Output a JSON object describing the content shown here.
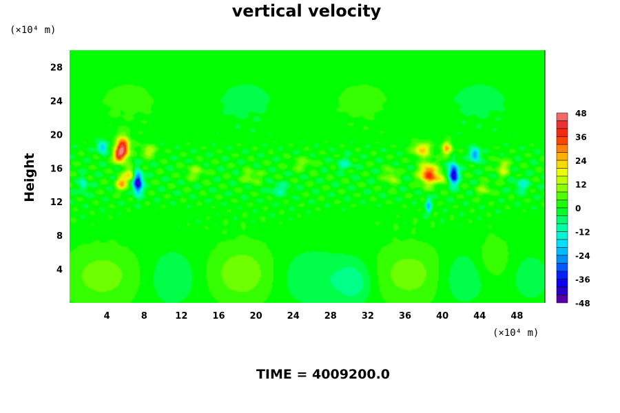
{
  "chart_data": {
    "type": "heatmap",
    "title": "vertical velocity",
    "ylabel": "Height",
    "x_unit": "(×10⁴ m)",
    "y_unit": "(×10⁴ m)",
    "footer": "TIME = 4009200.0",
    "xlim": [
      0,
      51
    ],
    "ylim": [
      0,
      30
    ],
    "x_ticks": [
      "4",
      "8",
      "12",
      "16",
      "20",
      "24",
      "28",
      "32",
      "36",
      "40",
      "44",
      "48"
    ],
    "y_ticks": [
      "4",
      "8",
      "12",
      "16",
      "20",
      "24",
      "28"
    ],
    "colorbar": {
      "min": -48,
      "max": 48,
      "step": 4,
      "labels": [
        "48",
        "36",
        "24",
        "12",
        "0",
        "-12",
        "-24",
        "-36",
        "-48"
      ]
    },
    "background_value": 0,
    "features": [
      {
        "x": 3.5,
        "y": 3.2,
        "rx": 4.0,
        "ry": 3.5,
        "value": 8
      },
      {
        "x": 18.5,
        "y": 3.5,
        "rx": 3.5,
        "ry": 3.5,
        "value": 9
      },
      {
        "x": 36.5,
        "y": 3.4,
        "rx": 4.0,
        "ry": 3.5,
        "value": 8
      },
      {
        "x": 45.5,
        "y": 5.5,
        "rx": 1.6,
        "ry": 2.5,
        "value": 6
      },
      {
        "x": 11.0,
        "y": 3.0,
        "rx": 2.5,
        "ry": 3.0,
        "value": -6
      },
      {
        "x": 26.0,
        "y": 3.0,
        "rx": 3.5,
        "ry": 3.0,
        "value": -6
      },
      {
        "x": 30.5,
        "y": 2.5,
        "rx": 2.0,
        "ry": 2.5,
        "value": -9
      },
      {
        "x": 42.0,
        "y": 3.0,
        "rx": 2.5,
        "ry": 3.0,
        "value": -6
      },
      {
        "x": 49.5,
        "y": 3.0,
        "rx": 1.8,
        "ry": 2.5,
        "value": -5
      },
      {
        "x": 5.7,
        "y": 18.5,
        "rx": 0.7,
        "ry": 1.2,
        "value": 44
      },
      {
        "x": 5.3,
        "y": 17.4,
        "rx": 0.6,
        "ry": 0.8,
        "value": 30
      },
      {
        "x": 6.5,
        "y": 15.2,
        "rx": 0.6,
        "ry": 0.8,
        "value": 22
      },
      {
        "x": 5.6,
        "y": 14.2,
        "rx": 0.6,
        "ry": 0.8,
        "value": 26
      },
      {
        "x": 3.5,
        "y": 18.5,
        "rx": 0.5,
        "ry": 0.7,
        "value": -22
      },
      {
        "x": 7.3,
        "y": 14.3,
        "rx": 0.5,
        "ry": 1.3,
        "value": -46
      },
      {
        "x": 1.5,
        "y": 14.0,
        "rx": 0.4,
        "ry": 0.9,
        "value": -14
      },
      {
        "x": 8.5,
        "y": 18.0,
        "rx": 0.8,
        "ry": 0.7,
        "value": 14
      },
      {
        "x": 38.5,
        "y": 15.3,
        "rx": 0.9,
        "ry": 1.2,
        "value": 38
      },
      {
        "x": 37.8,
        "y": 18.2,
        "rx": 0.9,
        "ry": 0.8,
        "value": 24
      },
      {
        "x": 40.5,
        "y": 18.3,
        "rx": 0.5,
        "ry": 0.8,
        "value": 26
      },
      {
        "x": 39.8,
        "y": 14.8,
        "rx": 0.6,
        "ry": 0.6,
        "value": 18
      },
      {
        "x": 41.2,
        "y": 15.3,
        "rx": 0.5,
        "ry": 1.2,
        "value": -44
      },
      {
        "x": 43.5,
        "y": 17.6,
        "rx": 0.5,
        "ry": 0.8,
        "value": -28
      },
      {
        "x": 38.5,
        "y": 11.6,
        "rx": 0.3,
        "ry": 0.9,
        "value": -22
      },
      {
        "x": 46.5,
        "y": 16.0,
        "rx": 0.7,
        "ry": 1.0,
        "value": 14
      },
      {
        "x": 34.5,
        "y": 15.0,
        "rx": 0.7,
        "ry": 1.0,
        "value": 12
      },
      {
        "x": 13.5,
        "y": 15.5,
        "rx": 1.0,
        "ry": 0.8,
        "value": 10
      },
      {
        "x": 19.5,
        "y": 15.0,
        "rx": 1.0,
        "ry": 0.8,
        "value": 10
      },
      {
        "x": 22.5,
        "y": 13.5,
        "rx": 1.0,
        "ry": 0.7,
        "value": -10
      },
      {
        "x": 29.5,
        "y": 16.5,
        "rx": 0.8,
        "ry": 0.7,
        "value": -10
      },
      {
        "x": 25.0,
        "y": 16.5,
        "rx": 1.2,
        "ry": 0.7,
        "value": 8
      },
      {
        "x": 48.5,
        "y": 14.0,
        "rx": 0.8,
        "ry": 0.8,
        "value": -12
      },
      {
        "x": 44.5,
        "y": 13.5,
        "rx": 0.8,
        "ry": 0.8,
        "value": 10
      }
    ]
  }
}
